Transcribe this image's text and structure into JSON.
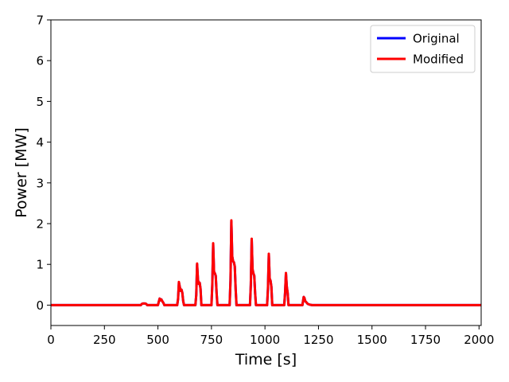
{
  "chart_data": {
    "type": "line",
    "xlabel": "Time [s]",
    "ylabel": "Power [MW]",
    "xlim": [
      0,
      2010
    ],
    "ylim": [
      -0.5,
      7
    ],
    "xticks": [
      0,
      250,
      500,
      750,
      1000,
      1250,
      1500,
      1750,
      2000
    ],
    "yticks": [
      0,
      1,
      2,
      3,
      4,
      5,
      6,
      7
    ],
    "legend_position": "top-right",
    "series": [
      {
        "name": "Original",
        "color": "#0000ff",
        "x": [
          0,
          420,
          425,
          430,
          440,
          445,
          450,
          500,
          504,
          508,
          512,
          516,
          520,
          526,
          530,
          590,
          594,
          598,
          602,
          606,
          610,
          614,
          618,
          622,
          675,
          679,
          683,
          687,
          691,
          695,
          699,
          703,
          750,
          754,
          758,
          762,
          766,
          770,
          774,
          778,
          835,
          839,
          843,
          847,
          851,
          855,
          859,
          863,
          867,
          930,
          934,
          938,
          942,
          946,
          950,
          954,
          958,
          1010,
          1014,
          1018,
          1022,
          1026,
          1030,
          1034,
          1090,
          1094,
          1098,
          1102,
          1106,
          1110,
          1175,
          1178,
          1181,
          1184,
          1188,
          1195,
          1200,
          1210,
          1220,
          2010
        ],
        "values": [
          0,
          0,
          0.03,
          0.04,
          0.04,
          0.03,
          0,
          0,
          0.08,
          0.16,
          0.12,
          0.14,
          0.1,
          0.05,
          0,
          0,
          0.15,
          0.55,
          0.45,
          0.35,
          0.38,
          0.3,
          0.1,
          0,
          0,
          0.25,
          1.0,
          0.62,
          0.52,
          0.55,
          0.4,
          0,
          0,
          0.5,
          1.5,
          0.82,
          0.78,
          0.72,
          0.3,
          0,
          0,
          0.6,
          2.05,
          1.2,
          1.08,
          1.05,
          0.95,
          0.4,
          0,
          0,
          0.5,
          1.62,
          0.88,
          0.78,
          0.72,
          0.3,
          0,
          0,
          0.4,
          1.25,
          0.65,
          0.6,
          0.45,
          0,
          0,
          0.3,
          0.78,
          0.45,
          0.3,
          0,
          0,
          0.1,
          0.2,
          0.18,
          0.1,
          0.06,
          0.03,
          0.01,
          0,
          0
        ]
      },
      {
        "name": "Modified",
        "color": "#ff0000",
        "x": [
          0,
          420,
          425,
          430,
          440,
          445,
          450,
          500,
          504,
          508,
          512,
          516,
          520,
          526,
          530,
          590,
          594,
          598,
          602,
          606,
          610,
          614,
          618,
          622,
          675,
          679,
          683,
          687,
          691,
          695,
          699,
          703,
          750,
          754,
          758,
          762,
          766,
          770,
          774,
          778,
          835,
          839,
          843,
          847,
          851,
          855,
          859,
          863,
          867,
          930,
          934,
          938,
          942,
          946,
          950,
          954,
          958,
          1010,
          1014,
          1018,
          1022,
          1026,
          1030,
          1034,
          1090,
          1094,
          1098,
          1102,
          1106,
          1110,
          1175,
          1178,
          1181,
          1184,
          1188,
          1195,
          1200,
          1210,
          1220,
          2010
        ],
        "values": [
          0,
          0,
          0.03,
          0.04,
          0.04,
          0.03,
          0,
          0,
          0.08,
          0.16,
          0.12,
          0.14,
          0.1,
          0.05,
          0,
          0,
          0.15,
          0.57,
          0.45,
          0.35,
          0.38,
          0.3,
          0.1,
          0,
          0,
          0.25,
          1.02,
          0.62,
          0.52,
          0.55,
          0.4,
          0,
          0,
          0.5,
          1.52,
          0.82,
          0.78,
          0.72,
          0.3,
          0,
          0,
          0.6,
          2.08,
          1.2,
          1.08,
          1.05,
          0.95,
          0.4,
          0,
          0,
          0.5,
          1.63,
          0.88,
          0.78,
          0.72,
          0.3,
          0,
          0,
          0.4,
          1.26,
          0.65,
          0.6,
          0.45,
          0,
          0,
          0.3,
          0.79,
          0.45,
          0.3,
          0,
          0,
          0.1,
          0.2,
          0.18,
          0.1,
          0.06,
          0.03,
          0.01,
          0,
          0
        ]
      }
    ]
  }
}
